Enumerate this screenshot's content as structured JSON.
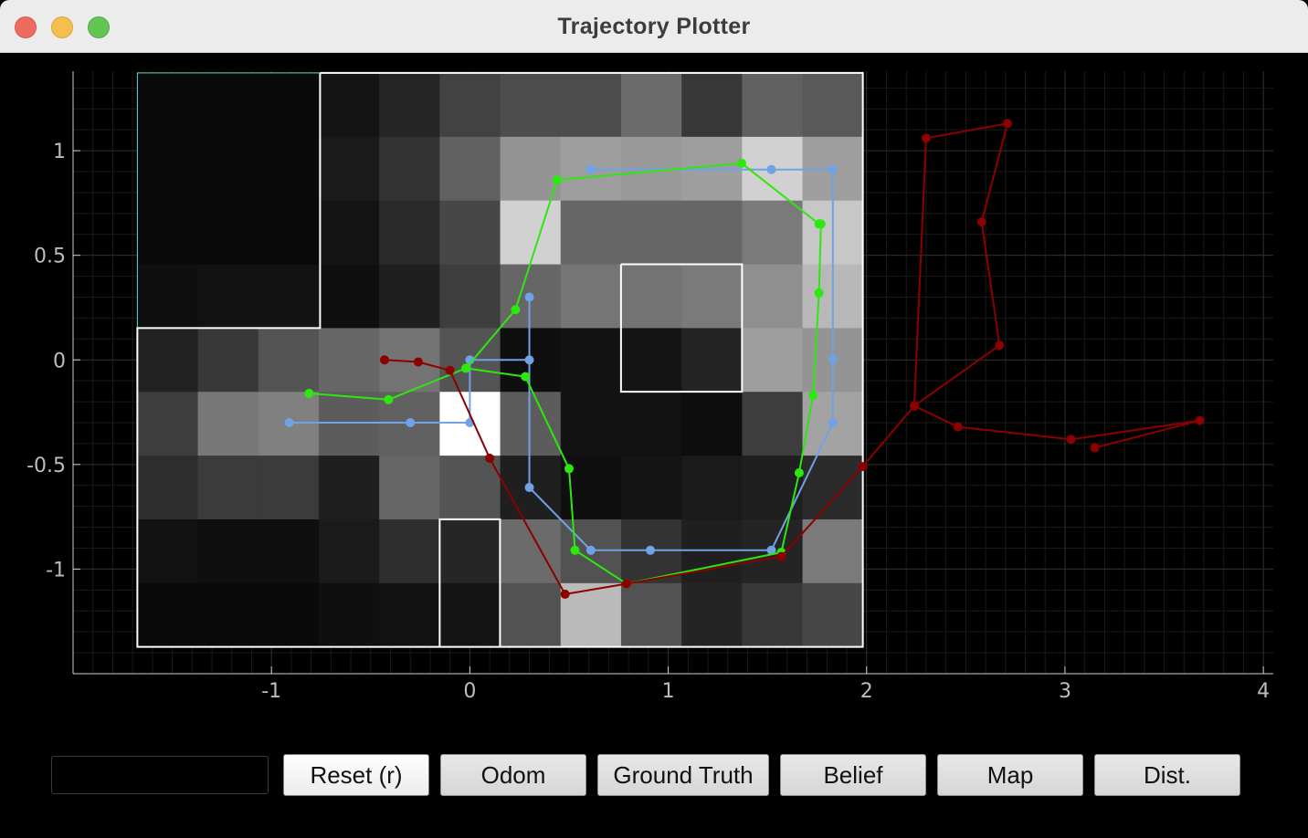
{
  "window": {
    "title": "Trajectory Plotter"
  },
  "controls": {
    "input_value": "",
    "buttons": [
      "Reset (r)",
      "Odom",
      "Ground Truth",
      "Belief",
      "Map",
      "Dist."
    ]
  },
  "colors": {
    "background": "#000000",
    "grid": "#2e2e2e",
    "axis_text": "#bdbdbd",
    "ground_truth": "#2de80e",
    "odom": "#8b0000",
    "belief": "#6fa2e6",
    "map_walls": "#ffffff",
    "start_region": "#6fd9d9"
  },
  "chart_data": {
    "type": "line",
    "xlim": [
      -2.0,
      4.05
    ],
    "ylim": [
      -1.5,
      1.38
    ],
    "x_ticks": [
      -1,
      0,
      1,
      2,
      3,
      4
    ],
    "y_ticks": [
      1,
      0.5,
      0,
      -0.5,
      -1
    ],
    "grid": true,
    "belief_grid": {
      "x0": -1.676,
      "y0": -1.372,
      "cell": 0.3048,
      "rows_top_to_bottom": [
        [
          0.04,
          0.04,
          0.04,
          0.08,
          0.15,
          0.26,
          0.3,
          0.3,
          0.42,
          0.22,
          0.38,
          0.35
        ],
        [
          0.04,
          0.04,
          0.04,
          0.1,
          0.2,
          0.38,
          0.58,
          0.62,
          0.6,
          0.62,
          0.82,
          0.62
        ],
        [
          0.04,
          0.04,
          0.04,
          0.08,
          0.17,
          0.28,
          0.82,
          0.4,
          0.4,
          0.4,
          0.48,
          0.78
        ],
        [
          0.06,
          0.07,
          0.07,
          0.06,
          0.12,
          0.24,
          0.4,
          0.46,
          0.45,
          0.48,
          0.56,
          0.72
        ],
        [
          0.13,
          0.22,
          0.33,
          0.4,
          0.45,
          0.33,
          0.06,
          0.07,
          0.08,
          0.14,
          0.62,
          0.58
        ],
        [
          0.24,
          0.47,
          0.5,
          0.36,
          0.38,
          1.0,
          0.36,
          0.07,
          0.07,
          0.05,
          0.24,
          0.64
        ],
        [
          0.18,
          0.23,
          0.23,
          0.12,
          0.4,
          0.33,
          0.12,
          0.06,
          0.08,
          0.1,
          0.12,
          0.17
        ],
        [
          0.07,
          0.06,
          0.06,
          0.1,
          0.18,
          0.15,
          0.42,
          0.32,
          0.2,
          0.12,
          0.14,
          0.48
        ],
        [
          0.04,
          0.04,
          0.04,
          0.06,
          0.07,
          0.08,
          0.32,
          0.73,
          0.32,
          0.14,
          0.22,
          0.28
        ]
      ]
    },
    "map_walls": [
      [
        [
          -0.755,
          1.372
        ],
        [
          1.981,
          1.372
        ],
        [
          1.981,
          -1.372
        ],
        [
          -1.676,
          -1.372
        ],
        [
          -1.676,
          0.152
        ],
        [
          -0.755,
          0.152
        ],
        [
          -0.755,
          1.372
        ]
      ],
      [
        [
          0.762,
          0.457
        ],
        [
          1.372,
          0.457
        ],
        [
          1.372,
          -0.152
        ],
        [
          0.762,
          -0.152
        ],
        [
          0.762,
          0.457
        ]
      ],
      [
        [
          -0.152,
          -1.372
        ],
        [
          -0.152,
          -0.762
        ],
        [
          0.152,
          -0.762
        ],
        [
          0.152,
          -1.372
        ]
      ]
    ],
    "start_region": [
      [
        -1.676,
        0.152
      ],
      [
        -1.676,
        1.372
      ],
      [
        -0.755,
        1.372
      ]
    ],
    "series": [
      {
        "name": "",
        "color": "#6fa2e6",
        "x": [
          -0.91,
          -0.3,
          0.0,
          0.0,
          0.3,
          0.3,
          0.3,
          0.61,
          0.91,
          1.52,
          1.83,
          1.83,
          1.83,
          1.52,
          0.61
        ],
        "y": [
          -0.3,
          -0.3,
          -0.3,
          0.0,
          0.0,
          0.3,
          -0.61,
          -0.91,
          -0.91,
          -0.91,
          -0.3,
          0.0,
          0.91,
          0.91,
          0.91
        ]
      },
      {
        "name": "",
        "color": "#2de80e",
        "x": [
          -0.81,
          -0.41,
          -0.02,
          0.28,
          0.5,
          0.53,
          0.79,
          1.57,
          1.66,
          1.73,
          1.76,
          1.77,
          1.76,
          1.37,
          0.44,
          0.23,
          -0.02
        ],
        "y": [
          -0.16,
          -0.19,
          -0.04,
          -0.08,
          -0.52,
          -0.91,
          -1.07,
          -0.92,
          -0.54,
          -0.17,
          0.32,
          0.65,
          0.65,
          0.94,
          0.86,
          0.24,
          -0.04
        ]
      },
      {
        "name": "",
        "color": "#8b0000",
        "x": [
          -0.43,
          -0.26,
          -0.1,
          0.1,
          0.48,
          0.79,
          1.57,
          1.98,
          2.24,
          2.67,
          2.58,
          2.71,
          2.3,
          2.24,
          2.46,
          3.03,
          3.68,
          3.15
        ],
        "y": [
          0.0,
          -0.01,
          -0.05,
          -0.47,
          -1.12,
          -1.07,
          -0.94,
          -0.51,
          -0.22,
          0.07,
          0.66,
          1.13,
          1.06,
          -0.22,
          -0.32,
          -0.38,
          -0.29,
          -0.42
        ]
      }
    ]
  }
}
